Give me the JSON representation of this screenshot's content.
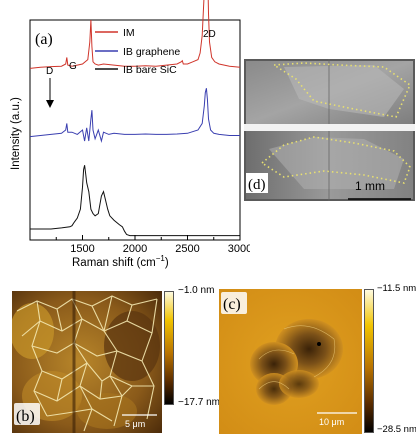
{
  "chart_data": {
    "type": "line",
    "panel_label": "(a)",
    "xlabel": "Raman shift (cm",
    "xlabel_exp": "−1",
    "xlabel_close": ")",
    "ylabel": "Intensity (a.u.)",
    "xlim": [
      1000,
      3000
    ],
    "xticks": [
      "1500",
      "2000",
      "2500",
      "3000"
    ],
    "annotations": {
      "D": "D",
      "G": "G",
      "2D": "2D"
    },
    "legend_position": "top-right",
    "series": [
      {
        "name": "IM",
        "color": "#d0352b",
        "offset": 0.78,
        "x": [
          1000,
          1100,
          1200,
          1300,
          1340,
          1350,
          1360,
          1400,
          1500,
          1550,
          1570,
          1580,
          1590,
          1600,
          1620,
          1650,
          1700,
          1800,
          1900,
          2000,
          2100,
          2200,
          2300,
          2400,
          2440,
          2450,
          2460,
          2500,
          2550,
          2600,
          2620,
          2640,
          2660,
          2670,
          2680,
          2690,
          2700,
          2710,
          2730,
          2760,
          2800,
          2900,
          3000
        ],
        "y": [
          0,
          0.005,
          0.008,
          0.01,
          0.02,
          0.05,
          0.015,
          0.01,
          0.02,
          0.04,
          0.12,
          0.22,
          0.1,
          0.03,
          0.02,
          0.015,
          0.02,
          0.015,
          0.01,
          0.01,
          0.012,
          0.01,
          0.015,
          0.02,
          0.03,
          0.035,
          0.02,
          0.02,
          0.03,
          0.04,
          0.07,
          0.15,
          0.35,
          0.55,
          0.62,
          0.5,
          0.25,
          0.12,
          0.05,
          0.03,
          0.02,
          0.01,
          0.005
        ]
      },
      {
        "name": "IB graphene",
        "color": "#3a3fb0",
        "offset": 0.47,
        "x": [
          1000,
          1100,
          1200,
          1300,
          1340,
          1350,
          1360,
          1400,
          1450,
          1500,
          1520,
          1540,
          1560,
          1580,
          1590,
          1600,
          1620,
          1650,
          1680,
          1700,
          1750,
          1800,
          1900,
          2000,
          2100,
          2200,
          2300,
          2400,
          2500,
          2600,
          2640,
          2660,
          2670,
          2680,
          2690,
          2700,
          2720,
          2750,
          2800,
          2900,
          3000
        ],
        "y": [
          0,
          0.005,
          0.01,
          0.015,
          0.03,
          0.06,
          0.02,
          0.02,
          0.01,
          0.03,
          -0.02,
          0.04,
          -0.02,
          0.08,
          0.12,
          0.03,
          -0.01,
          0.03,
          -0.02,
          0.02,
          0.01,
          0.015,
          0.01,
          0.01,
          0.012,
          0.01,
          0.01,
          0.012,
          0.015,
          0.03,
          0.06,
          0.14,
          0.2,
          0.22,
          0.17,
          0.08,
          0.03,
          0.015,
          0.01,
          0.005,
          0.005
        ]
      },
      {
        "name": "IB bare SiC",
        "color": "#111111",
        "offset": 0.02,
        "x": [
          1000,
          1100,
          1200,
          1300,
          1380,
          1400,
          1420,
          1450,
          1480,
          1500,
          1510,
          1520,
          1530,
          1540,
          1560,
          1580,
          1600,
          1620,
          1650,
          1680,
          1700,
          1720,
          1740,
          1760,
          1800,
          1850,
          1880,
          1900,
          1920,
          1950,
          2000,
          2500,
          3000
        ],
        "y": [
          0.03,
          0.03,
          0.03,
          0.035,
          0.04,
          0.045,
          0.06,
          0.08,
          0.12,
          0.22,
          0.3,
          0.32,
          0.28,
          0.24,
          0.2,
          0.12,
          0.1,
          0.09,
          0.1,
          0.18,
          0.2,
          0.16,
          0.12,
          0.09,
          0.07,
          0.05,
          0.04,
          0.02,
          0.005,
          0.0,
          0.0,
          0.0,
          0.0
        ]
      }
    ]
  },
  "panel_b": {
    "label": "(b)",
    "cbar_max": "−1.0 nm",
    "cbar_min": "−17.7 nm",
    "scalebar": "5 μm"
  },
  "panel_c": {
    "label": "(c)",
    "cbar_max": "−11.5 nm",
    "cbar_min": "−28.5 nm",
    "scalebar": "10 μm"
  },
  "panel_d": {
    "label": "(d)",
    "scalebar": "1 mm"
  }
}
